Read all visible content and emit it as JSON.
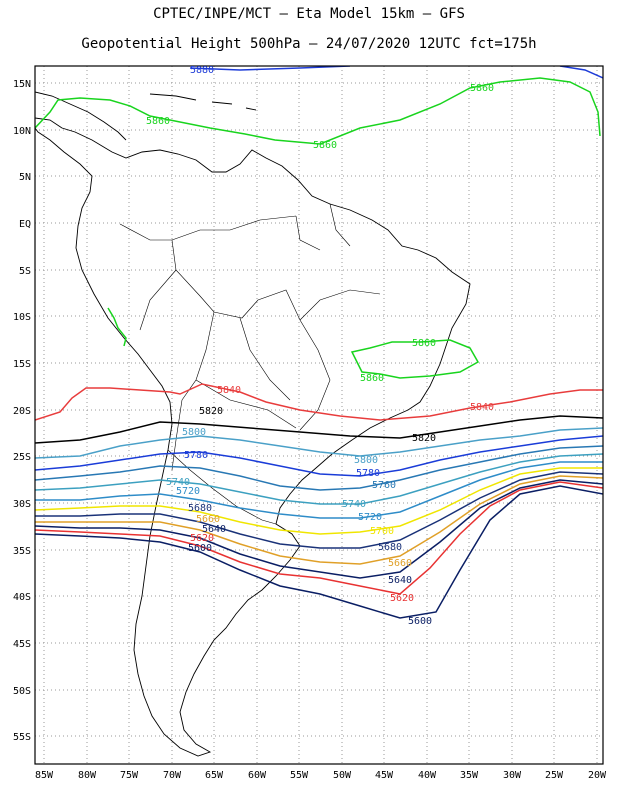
{
  "header": {
    "title_line1": "CPTEC/INPE/MCT –  Eta Model 15km – GFS",
    "title_line2": "Geopotential Height 500hPa – 24/07/2020 12UTC fct=175h"
  },
  "axes": {
    "lon_ticks": [
      "85W",
      "80W",
      "75W",
      "70W",
      "65W",
      "60W",
      "55W",
      "50W",
      "45W",
      "40W",
      "35W",
      "30W",
      "25W",
      "20W"
    ],
    "lat_ticks": [
      "15N",
      "10N",
      "5N",
      "EQ",
      "5S",
      "10S",
      "15S",
      "20S",
      "25S",
      "30S",
      "35S",
      "40S",
      "45S",
      "50S",
      "55S"
    ]
  },
  "contour_labels": {
    "l5880": "5880",
    "l5860": "5860",
    "l5840": "5840",
    "l5820": "5820",
    "l5800": "5800",
    "l5780": "5780",
    "l5760": "5760",
    "l5740": "5740",
    "l5720": "5720",
    "l5700": "5700",
    "l5680": "5680",
    "l5660": "5660",
    "l5640": "5640",
    "l5620": "5620",
    "l5600": "5600"
  },
  "colors": {
    "c5880": "#1e3cd8",
    "c5860": "#19d41e",
    "c5840": "#e83c3c",
    "c5820": "#000000",
    "c5800": "#4aa0c8",
    "c5780": "#1a3cd8",
    "c5760": "#2878b4",
    "c5740": "#3ca0c0",
    "c5720": "#2e8cc8",
    "c5700": "#f0e600",
    "c5680": "#1a3278",
    "c5660": "#e0a028",
    "c5640": "#0a1e64",
    "c5620": "#e83232",
    "c5600": "#0a1e64"
  }
}
